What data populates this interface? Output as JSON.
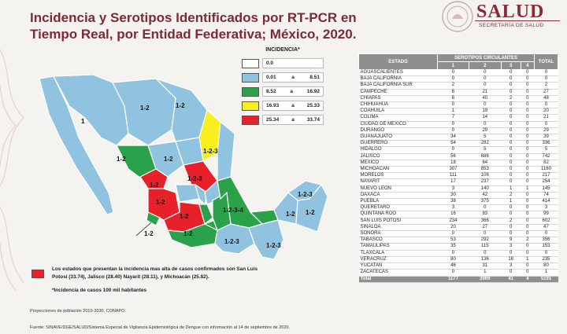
{
  "title_line1": "Incidencia y Serotipos Identificados por RT-PCR en",
  "title_line2": "Tiempo Real, por Entidad Federativa; México, 2020.",
  "logo": {
    "text": "SALUD",
    "subtitle": "SECRETARÍA DE SALUD"
  },
  "legend": {
    "title": "INCIDENCIA*",
    "rows": [
      {
        "color": "#ffffff",
        "from": "0.0",
        "sep": "",
        "to": ""
      },
      {
        "color": "#8fc3e0",
        "from": "0.01",
        "sep": "a",
        "to": "8.51"
      },
      {
        "color": "#2aa24a",
        "from": "8.52",
        "sep": "a",
        "to": "16.92"
      },
      {
        "color": "#f7ef1e",
        "from": "16.93",
        "sep": "a",
        "to": "25.33"
      },
      {
        "color": "#e8202a",
        "from": "25.34",
        "sep": "a",
        "to": "33.74"
      }
    ]
  },
  "map_labels": [
    "1",
    "1-2",
    "1-2",
    "1-2",
    "1-2",
    "1-2",
    "1-2",
    "1-2-3",
    "1-2-3",
    "1-2-3",
    "1-2-3",
    "1-2-3",
    "1-2-3",
    "1-2-3",
    "1-2-3",
    "1-2",
    "1-2",
    "1-2",
    "1-2",
    "1-2",
    "1-2",
    "1-2",
    "1-2",
    "1-2",
    "1-2",
    "1-2",
    "1-2",
    "1-2",
    "1-2",
    "1-2-3",
    "1-2-3",
    "1-2-3-4",
    "1-2",
    "1-2-3",
    "1-2-3"
  ],
  "note": {
    "text": "Los estados que presentan la incidencia mas alta de casos confirmados son San Luis Potosí (33.74), Jalisco (28.40) Nayarit (28.11), y Michoacán (25.82).",
    "sub": "*Incidencia de casos 100 mil habitantes"
  },
  "projection": "Proyecciones de población 2010-2030, CONAPO.",
  "source": "Fuente: SINAVE/DGE/SALUD/Sistema Especial de Vigilancia Epidemiológica de Dengue con información al 14 de septiembre de 2020.",
  "table": {
    "header_estado": "ESTADO",
    "header_sero": "SEROTIPOS CIRCULANTES",
    "header_total": "TOTAL",
    "sero_cols": [
      "1",
      "2",
      "3",
      "4"
    ],
    "rows": [
      [
        "AGUASCALIENTES",
        "0",
        "0",
        "0",
        "0",
        "0"
      ],
      [
        "BAJA CALIFORNIA",
        "0",
        "0",
        "0",
        "0",
        "0"
      ],
      [
        "BAJA CALIFORNIA SUR",
        "2",
        "0",
        "0",
        "0",
        "2"
      ],
      [
        "CAMPECHE",
        "6",
        "21",
        "0",
        "0",
        "27"
      ],
      [
        "CHIAPAS",
        "6",
        "40",
        "2",
        "0",
        "48"
      ],
      [
        "CHIHUAHUA",
        "0",
        "0",
        "0",
        "0",
        "0"
      ],
      [
        "COAHUILA",
        "1",
        "19",
        "0",
        "0",
        "20"
      ],
      [
        "COLIMA",
        "7",
        "14",
        "0",
        "0",
        "21"
      ],
      [
        "CIUDAD DE MEXICO",
        "0",
        "0",
        "0",
        "0",
        "0"
      ],
      [
        "DURANGO",
        "0",
        "29",
        "0",
        "0",
        "29"
      ],
      [
        "GUANAJUATO",
        "34",
        "5",
        "0",
        "0",
        "39"
      ],
      [
        "GUERRERO",
        "54",
        "282",
        "0",
        "0",
        "336"
      ],
      [
        "HIDALGO",
        "0",
        "5",
        "0",
        "0",
        "5"
      ],
      [
        "JALISCO",
        "56",
        "686",
        "0",
        "0",
        "742"
      ],
      [
        "MEXICO",
        "18",
        "64",
        "0",
        "0",
        "82"
      ],
      [
        "MICHOACAN",
        "307",
        "853",
        "0",
        "0",
        "1160"
      ],
      [
        "MORELOS",
        "111",
        "106",
        "0",
        "0",
        "217"
      ],
      [
        "NAYARIT",
        "17",
        "237",
        "0",
        "0",
        "254"
      ],
      [
        "NUEVO LEON",
        "3",
        "140",
        "1",
        "1",
        "145"
      ],
      [
        "OAXACA",
        "30",
        "42",
        "2",
        "0",
        "74"
      ],
      [
        "PUEBLA",
        "38",
        "375",
        "1",
        "0",
        "414"
      ],
      [
        "QUERETARO",
        "3",
        "0",
        "0",
        "0",
        "3"
      ],
      [
        "QUINTANA ROO",
        "16",
        "83",
        "0",
        "0",
        "99"
      ],
      [
        "SAN LUIS POTOSI",
        "234",
        "366",
        "2",
        "0",
        "602"
      ],
      [
        "SINALOA",
        "20",
        "27",
        "0",
        "0",
        "47"
      ],
      [
        "SONORA",
        "0",
        "0",
        "0",
        "0",
        "0"
      ],
      [
        "TABASCO",
        "53",
        "292",
        "9",
        "2",
        "356"
      ],
      [
        "TAMAULIPAS",
        "35",
        "115",
        "3",
        "0",
        "153"
      ],
      [
        "TLAXCALA",
        "0",
        "0",
        "0",
        "0",
        "0"
      ],
      [
        "VERACRUZ",
        "80",
        "136",
        "18",
        "1",
        "235"
      ],
      [
        "YUCATAN",
        "46",
        "31",
        "3",
        "0",
        "80"
      ],
      [
        "ZACATECAS",
        "0",
        "1",
        "0",
        "0",
        "1"
      ]
    ],
    "total": [
      "Total",
      "1177",
      "3969",
      "41",
      "4",
      "5191"
    ]
  }
}
